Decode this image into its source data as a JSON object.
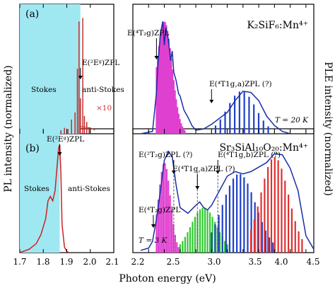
{
  "chart_data": {
    "type": "line",
    "xlabel": "Photon energy (eV)",
    "ylabel_left": "PL intensity (normalized)",
    "ylabel_right": "PLE intensity (normalized)",
    "x_ticks_left": [
      "1.7",
      "1.8",
      "1.9",
      "2.0",
      "2.1"
    ],
    "x_ticks_right": [
      "2.2",
      "2.4",
      "2.6",
      "2.8",
      "3.0",
      "3.2",
      "3.4",
      "3.6",
      "3.8",
      "4.0",
      "4.2",
      "4.4"
    ],
    "x_tick_labels_right": [
      "2.2",
      "2.5",
      "3.0",
      "3.5",
      "4.0",
      "4.5"
    ],
    "xlim_left": [
      1.7,
      2.1
    ],
    "xlim_right": [
      2.2,
      4.5
    ],
    "panels": [
      {
        "label": "(a)",
        "compound": "K₂SiF₆:Mn⁴⁺",
        "temperature": "T = 20 K",
        "stokes_label": "Stokes",
        "antistokes_label": "anti-Stokes",
        "multiplier": "×10",
        "shaded_region": [
          1.7,
          1.958
        ],
        "zpl_energy": 1.958,
        "zpl_label": "E(²Eᵍ)ZPL",
        "pl_lines": [
          {
            "x": 1.875,
            "y": 0.03
          },
          {
            "x": 1.89,
            "y": 0.05
          },
          {
            "x": 1.905,
            "y": 0.04
          },
          {
            "x": 1.92,
            "y": 0.12
          },
          {
            "x": 1.935,
            "y": 0.18
          },
          {
            "x": 1.945,
            "y": 0.55
          },
          {
            "x": 1.952,
            "y": 0.95
          },
          {
            "x": 1.958,
            "y": 0.3
          },
          {
            "x": 1.968,
            "y": 0.98
          },
          {
            "x": 1.975,
            "y": 0.15
          },
          {
            "x": 1.985,
            "y": 0.1
          },
          {
            "x": 1.995,
            "y": 0.05
          }
        ],
        "ple_curve": {
          "x": [
            2.3,
            2.45,
            2.5,
            2.52,
            2.55,
            2.58,
            2.6,
            2.62,
            2.65,
            2.68,
            2.7,
            2.72,
            2.75,
            2.78,
            2.8,
            2.85,
            2.9,
            2.95,
            3.0,
            3.1,
            3.2,
            3.3,
            3.4,
            3.5,
            3.6,
            3.7,
            3.8,
            3.9,
            4.0,
            4.1,
            4.2
          ],
          "y": [
            0.0,
            0.02,
            0.35,
            0.6,
            0.85,
            0.95,
            0.75,
            0.9,
            0.8,
            0.62,
            0.7,
            0.52,
            0.45,
            0.34,
            0.32,
            0.2,
            0.14,
            0.07,
            0.03,
            0.04,
            0.08,
            0.13,
            0.18,
            0.28,
            0.36,
            0.35,
            0.28,
            0.15,
            0.07,
            0.02,
            0.0
          ]
        },
        "ple_bars_magenta": {
          "x_start": 2.5,
          "x_end": 2.86,
          "count": 24,
          "peak_x": 2.6,
          "peak_y": 0.95
        },
        "ple_bars_blue": {
          "x_start": 3.25,
          "x_end": 3.92,
          "count": 12,
          "peak_x": 3.58,
          "peak_y": 0.36
        },
        "annotations": [
          {
            "text": "E(⁴T₂g)ZPL",
            "x": 2.5
          },
          {
            "text": "E(⁴T1g,a)ZPL (?)",
            "x": 3.2
          }
        ]
      },
      {
        "label": "(b)",
        "compound": "Sr₃SiAl₁₀O₂₀:Mn⁴⁺",
        "temperature": "T = 3 K",
        "stokes_label": "Stokes",
        "antistokes_label": "anti-Stokes",
        "shaded_region": [
          1.7,
          1.87
        ],
        "zpl_energy": 1.87,
        "zpl_label": "E(²Eᵍ)ZPL",
        "pl_curve": {
          "x": [
            1.7,
            1.74,
            1.77,
            1.79,
            1.81,
            1.82,
            1.83,
            1.84,
            1.85,
            1.86,
            1.865,
            1.87,
            1.875,
            1.88,
            1.89,
            1.9,
            1.91
          ],
          "y": [
            0.0,
            0.03,
            0.08,
            0.16,
            0.3,
            0.46,
            0.5,
            0.46,
            0.55,
            0.8,
            0.93,
            0.96,
            0.7,
            0.25,
            0.05,
            0.01,
            0.0
          ]
        },
        "ple_curve": {
          "x": [
            2.3,
            2.4,
            2.45,
            2.5,
            2.55,
            2.6,
            2.65,
            2.7,
            2.75,
            2.8,
            2.9,
            3.0,
            3.05,
            3.1,
            3.15,
            3.2,
            3.3,
            3.4,
            3.5,
            3.6,
            3.7,
            3.8,
            3.9,
            4.0,
            4.1,
            4.2,
            4.3,
            4.35,
            4.4,
            4.5
          ],
          "y": [
            0.02,
            0.04,
            0.1,
            0.3,
            0.55,
            0.82,
            0.9,
            0.85,
            0.6,
            0.4,
            0.35,
            0.42,
            0.45,
            0.4,
            0.38,
            0.42,
            0.55,
            0.68,
            0.72,
            0.7,
            0.72,
            0.76,
            0.8,
            0.88,
            0.87,
            0.75,
            0.55,
            0.35,
            0.15,
            0.03
          ]
        },
        "ple_bars_magenta": {
          "x_start": 2.5,
          "x_end": 2.78,
          "count": 14,
          "peak_x": 2.6,
          "peak_y": 0.8
        },
        "ple_bars_green": {
          "x_start": 2.8,
          "x_end": 3.4,
          "count": 20,
          "peak_x": 3.1,
          "peak_y": 0.4
        },
        "ple_bars_blue": {
          "x_start": 3.2,
          "x_end": 3.98,
          "count": 18,
          "peak_x": 3.55,
          "peak_y": 0.7
        },
        "ple_bars_red": {
          "x_start": 3.7,
          "x_end": 4.35,
          "count": 16,
          "peak_x": 4.0,
          "peak_y": 0.85
        },
        "annotations": [
          {
            "text": "E(²T₂g)ZPL (?)",
            "x": 2.72
          },
          {
            "text": "E(⁴T1g,a)ZPL (?)",
            "x": 3.02
          },
          {
            "text": "E(⁴T1g,b)ZPL (?)",
            "x": 3.28
          },
          {
            "text": "E(⁴T₂g)ZPL",
            "x": 2.46
          }
        ]
      }
    ]
  }
}
